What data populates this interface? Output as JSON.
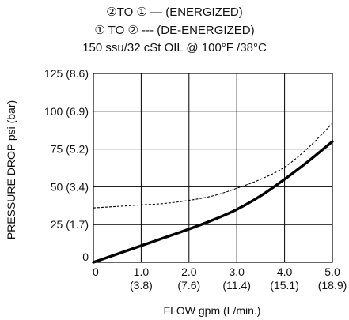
{
  "chart_data": {
    "type": "line",
    "title_lines": [
      "②TO ① — (ENERGIZED)",
      "① TO ② --- (DE-ENERGIZED)",
      "150 ssu/32 cSt OIL @ 100°F /38°C"
    ],
    "xlabel": "FLOW gpm (L/min.)",
    "ylabel": "PRESSURE DROP psi (bar)",
    "xlim": [
      0,
      5
    ],
    "ylim": [
      0,
      125
    ],
    "x_ticks": [
      {
        "value": 0,
        "label": "0",
        "sub": ""
      },
      {
        "value": 1,
        "label": "1.0",
        "sub": "(3.8)"
      },
      {
        "value": 2,
        "label": "2.0",
        "sub": "(7.6)"
      },
      {
        "value": 3,
        "label": "3.0",
        "sub": "(11.4)"
      },
      {
        "value": 4,
        "label": "4.0",
        "sub": "(15.1)"
      },
      {
        "value": 5,
        "label": "5.0",
        "sub": "(18.9)"
      }
    ],
    "y_ticks": [
      {
        "value": 0,
        "label": "0"
      },
      {
        "value": 25,
        "label": "25 (1.7)"
      },
      {
        "value": 50,
        "label": "50 (3.4)"
      },
      {
        "value": 75,
        "label": "75 (5.2)"
      },
      {
        "value": 100,
        "label": "100 (6.9)"
      },
      {
        "value": 125,
        "label": "125 (8.6)"
      }
    ],
    "grid": true,
    "series": [
      {
        "name": "②TO ① (ENERGIZED)",
        "style": "solid",
        "color": "#000000",
        "x": [
          0,
          0.5,
          1.0,
          1.5,
          2.0,
          2.5,
          3.0,
          3.5,
          4.0,
          4.5,
          5.0
        ],
        "y": [
          0,
          5.5,
          11,
          16.5,
          22,
          28,
          35,
          44,
          55,
          67,
          80
        ]
      },
      {
        "name": "① TO ② (DE-ENERGIZED)",
        "style": "dashed",
        "color": "#000000",
        "x": [
          0,
          0.5,
          1.0,
          1.5,
          2.0,
          2.5,
          3.0,
          3.5,
          4.0,
          4.5,
          5.0
        ],
        "y": [
          36,
          37,
          38,
          39,
          41,
          44,
          49,
          55,
          63,
          76,
          92
        ]
      }
    ]
  }
}
